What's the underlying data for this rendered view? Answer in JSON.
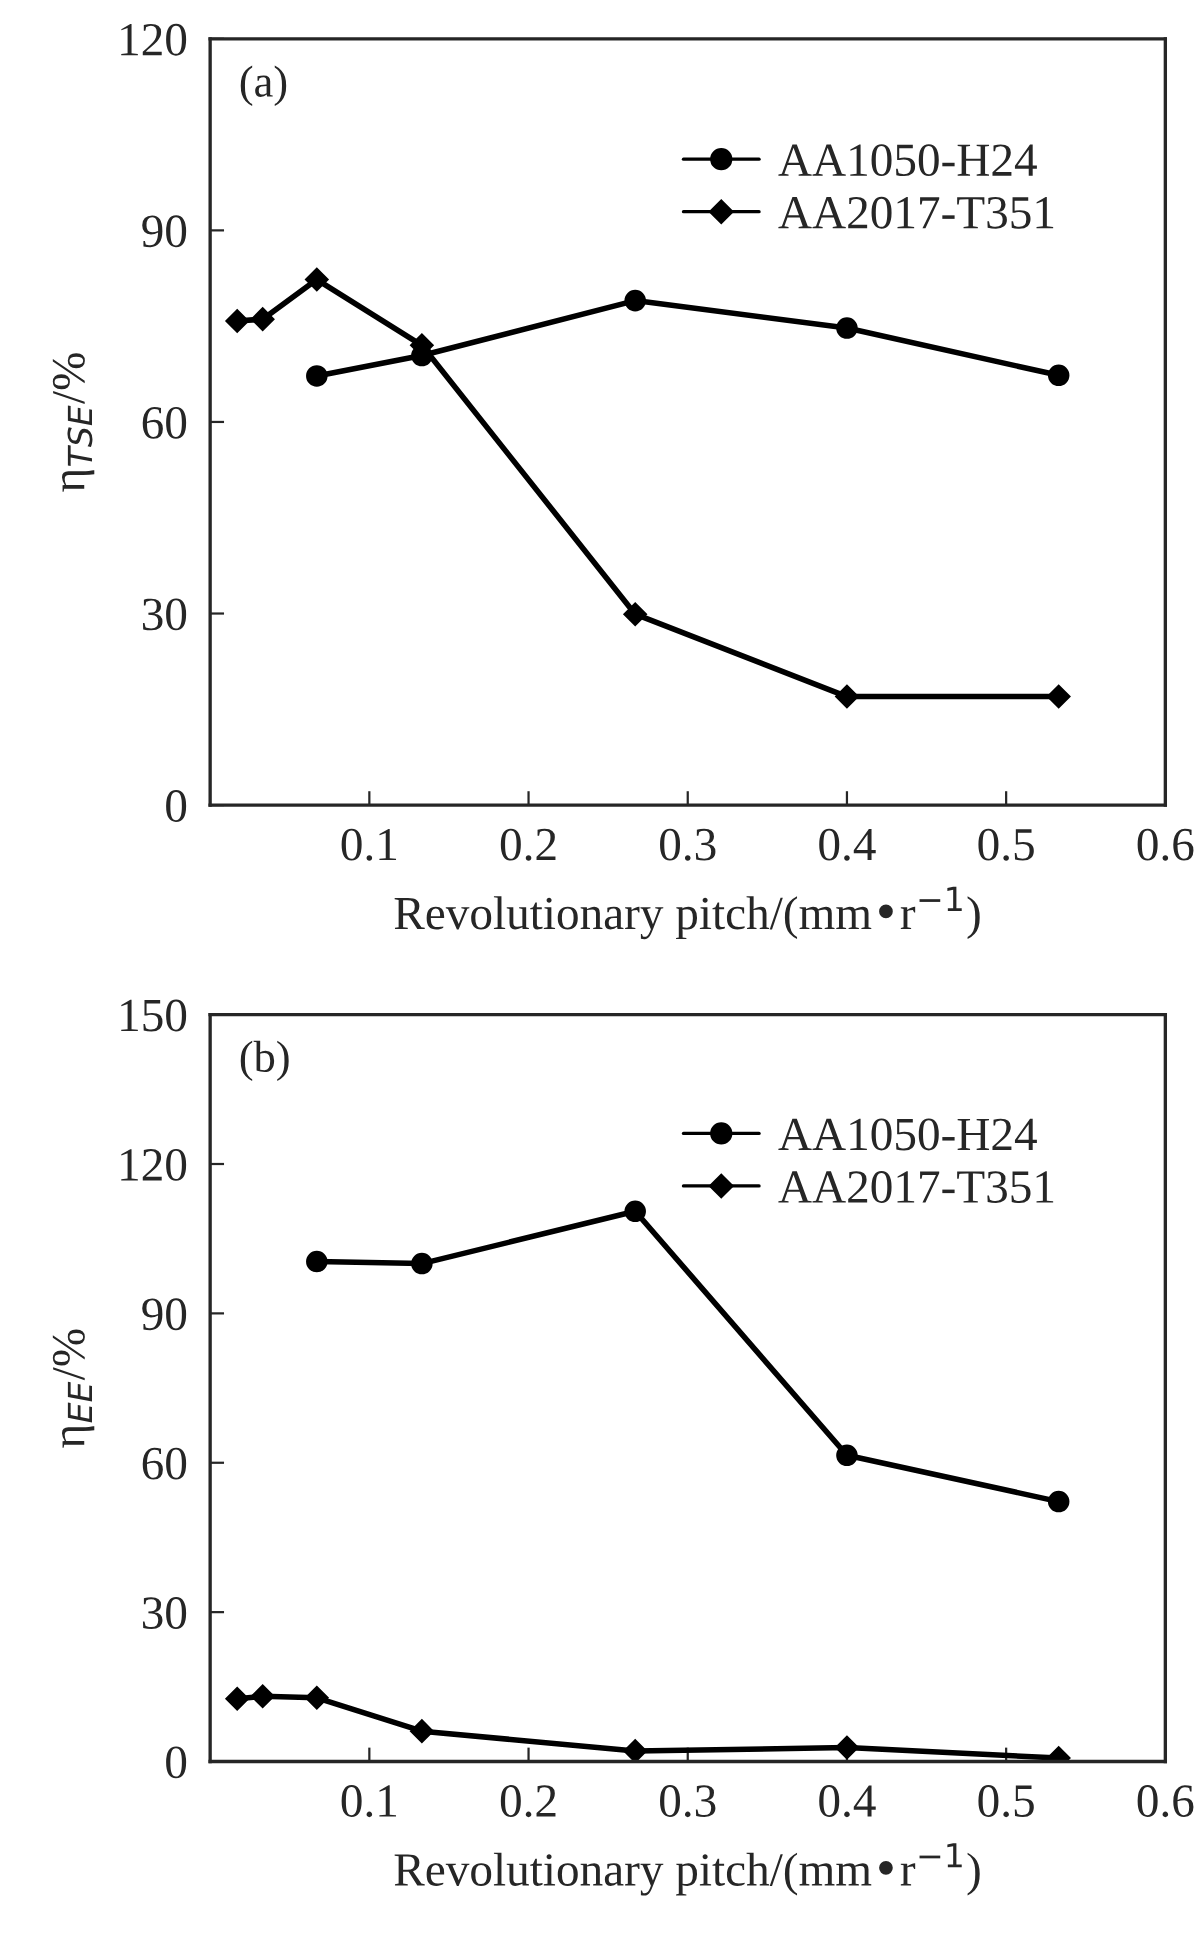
{
  "chart_data": [
    {
      "type": "line",
      "xlabel": "Revolutionary pitch/(mm•r$^{−1}$)",
      "ylabel": "η$_{TSE}$/%",
      "annotations": [
        "(a)"
      ],
      "xlim": [
        0,
        0.6
      ],
      "ylim": [
        0,
        120
      ],
      "xticks": [
        0.1,
        0.2,
        0.3,
        0.4,
        0.5,
        0.6
      ],
      "yticks": [
        0,
        30,
        60,
        90,
        120
      ],
      "legend": "top right",
      "grid": false,
      "line_style": "solid",
      "series": [
        {
          "name": "AA1050-H24",
          "color": "#000000",
          "marker": "circle",
          "x": [
            0.067,
            0.133,
            0.267,
            0.4,
            0.533
          ],
          "values": [
            67.2,
            70.4,
            79,
            74.7,
            67.3
          ]
        },
        {
          "name": "AA2017-T351",
          "color": "#000000",
          "marker": "diamond",
          "x": [
            0.017,
            0.033,
            0.067,
            0.133,
            0.267,
            0.4,
            0.533
          ],
          "values": [
            75.8,
            76.1,
            82.3,
            72,
            29.9,
            17,
            17
          ]
        }
      ]
    },
    {
      "type": "line",
      "xlabel": "Revolutionary pitch/(mm•r$^{−1}$)",
      "ylabel": "η$_{EE}$/%",
      "annotations": [
        "(b)"
      ],
      "xlim": [
        0,
        0.6
      ],
      "ylim": [
        0,
        150
      ],
      "xticks": [
        0.1,
        0.2,
        0.3,
        0.4,
        0.5,
        0.6
      ],
      "yticks": [
        0,
        30,
        60,
        90,
        120,
        150
      ],
      "legend": "top right",
      "grid": false,
      "line_style": "solid",
      "series": [
        {
          "name": "AA1050-H24",
          "color": "#000000",
          "marker": "circle",
          "x": [
            0.067,
            0.133,
            0.267,
            0.4,
            0.533
          ],
          "values": [
            100.4,
            100,
            110.5,
            61.5,
            52.2
          ]
        },
        {
          "name": "AA2017-T351",
          "color": "#000000",
          "marker": "diamond",
          "x": [
            0.017,
            0.033,
            0.067,
            0.133,
            0.267,
            0.4,
            0.533
          ],
          "values": [
            12.6,
            13.1,
            12.8,
            6.1,
            2.1,
            2.8,
            0.7
          ]
        }
      ]
    }
  ]
}
